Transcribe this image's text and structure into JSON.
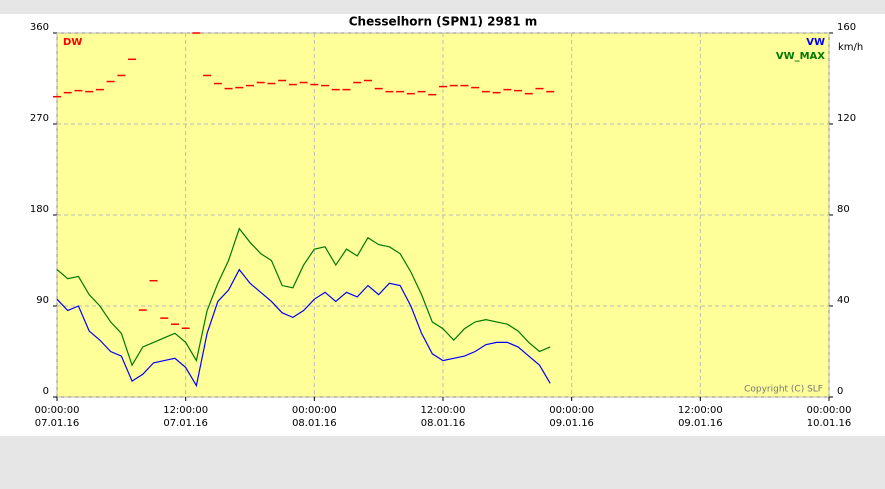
{
  "chart_data": {
    "type": "line",
    "title": "Chesselhorn (SPN1) 2981 m",
    "y2label": "km/h",
    "annotation": "Copyright (C) SLF",
    "grid": true,
    "x": [
      0,
      1,
      2,
      3,
      4,
      5,
      6,
      7,
      8,
      9,
      10,
      11,
      12,
      13,
      14,
      15,
      16,
      17,
      18,
      19,
      20,
      21,
      22,
      23,
      24,
      25,
      26,
      27,
      28,
      29,
      30,
      31,
      32,
      33,
      34,
      35,
      36,
      37,
      38,
      39,
      40,
      41,
      42,
      43,
      44,
      45,
      46
    ],
    "xlim": [
      0,
      72
    ],
    "xticks": [
      {
        "value": 0,
        "label": [
          "00:00:00",
          "07.01.16"
        ]
      },
      {
        "value": 12,
        "label": [
          "12:00:00",
          "07.01.16"
        ]
      },
      {
        "value": 24,
        "label": [
          "00:00:00",
          "08.01.16"
        ]
      },
      {
        "value": 36,
        "label": [
          "12:00:00",
          "08.01.16"
        ]
      },
      {
        "value": 48,
        "label": [
          "00:00:00",
          "09.01.16"
        ]
      },
      {
        "value": 60,
        "label": [
          "12:00:00",
          "09.01.16"
        ]
      },
      {
        "value": 72,
        "label": [
          "00:00:00",
          "10.01.16"
        ]
      }
    ],
    "ylim": [
      0,
      360
    ],
    "yticks": [
      0,
      90,
      180,
      270,
      360
    ],
    "y2lim": [
      0,
      160
    ],
    "y2ticks": [
      0,
      40,
      80,
      120,
      160
    ],
    "series": [
      {
        "name": "DW",
        "color": "#ff0000",
        "style": "dash",
        "values": [
          297,
          301,
          303,
          302,
          304,
          312,
          318,
          334,
          86,
          115,
          78,
          72,
          68,
          360,
          318,
          310,
          305,
          306,
          308,
          311,
          310,
          313,
          309,
          311,
          309,
          308,
          304,
          304,
          311,
          313,
          305,
          302,
          302,
          300,
          302,
          299,
          307,
          308,
          308,
          306,
          302,
          301,
          304,
          303,
          300,
          305,
          302
        ]
      },
      {
        "name": "VW",
        "color": "#0000ff",
        "axis": "y2",
        "values": [
          43,
          38,
          40,
          29,
          25,
          20,
          18,
          7,
          10,
          15,
          16,
          17,
          13,
          5,
          28,
          42,
          47,
          56,
          50,
          46,
          42,
          37,
          35,
          38,
          43,
          46,
          42,
          46,
          44,
          49,
          45,
          50,
          49,
          40,
          28,
          19,
          16,
          17,
          18,
          20,
          23,
          24,
          24,
          22,
          18,
          14,
          6
        ]
      },
      {
        "name": "VW_MAX",
        "color": "#007700",
        "axis": "y2",
        "values": [
          56,
          52,
          53,
          45,
          40,
          33,
          28,
          14,
          22,
          24,
          26,
          28,
          24,
          16,
          38,
          50,
          60,
          74,
          68,
          63,
          60,
          49,
          48,
          58,
          65,
          66,
          58,
          65,
          62,
          70,
          67,
          66,
          63,
          55,
          45,
          33,
          30,
          25,
          30,
          33,
          34,
          33,
          32,
          29,
          24,
          20,
          22
        ]
      }
    ]
  }
}
